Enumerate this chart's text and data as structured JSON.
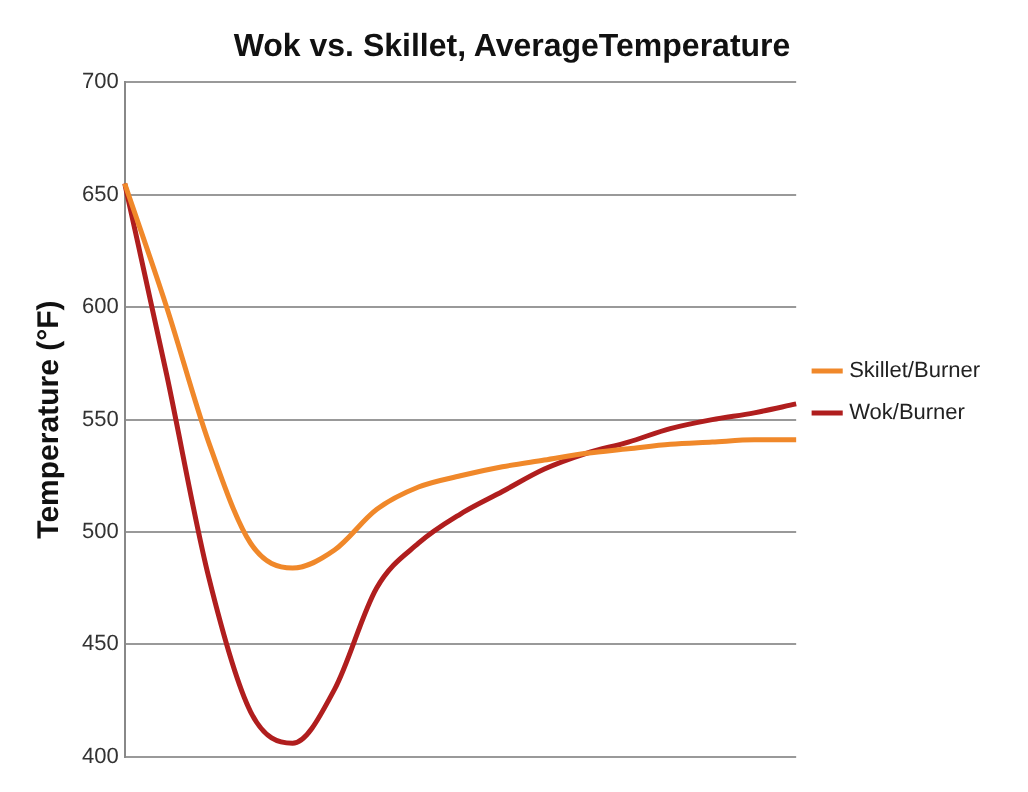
{
  "chart_data": {
    "type": "line",
    "title": "Wok vs. Skillet, AverageTemperature",
    "ylabel": "Temperature (°F)",
    "categories": [
      null,
      null,
      null,
      null,
      null,
      null,
      null,
      null,
      null,
      null,
      null,
      null,
      null,
      null,
      null,
      null,
      null
    ],
    "series": [
      {
        "name": "Skillet/Burner",
        "color": "#f0882a",
        "values": [
          655,
          600,
          540,
          495,
          484,
          492,
          510,
          520,
          525,
          529,
          532,
          535,
          537,
          539,
          540,
          541,
          541
        ]
      },
      {
        "name": "Wok/Burner",
        "color": "#b01e1e",
        "values": [
          655,
          570,
          480,
          420,
          406,
          430,
          475,
          495,
          508,
          518,
          528,
          535,
          540,
          546,
          550,
          553,
          557
        ]
      }
    ],
    "ylim": [
      400,
      700
    ],
    "yticks": [
      400,
      450,
      500,
      550,
      600,
      650,
      700
    ],
    "grid": "y",
    "legend": "right",
    "marker": "none",
    "line_style": "solid",
    "tick_labels": "y"
  }
}
